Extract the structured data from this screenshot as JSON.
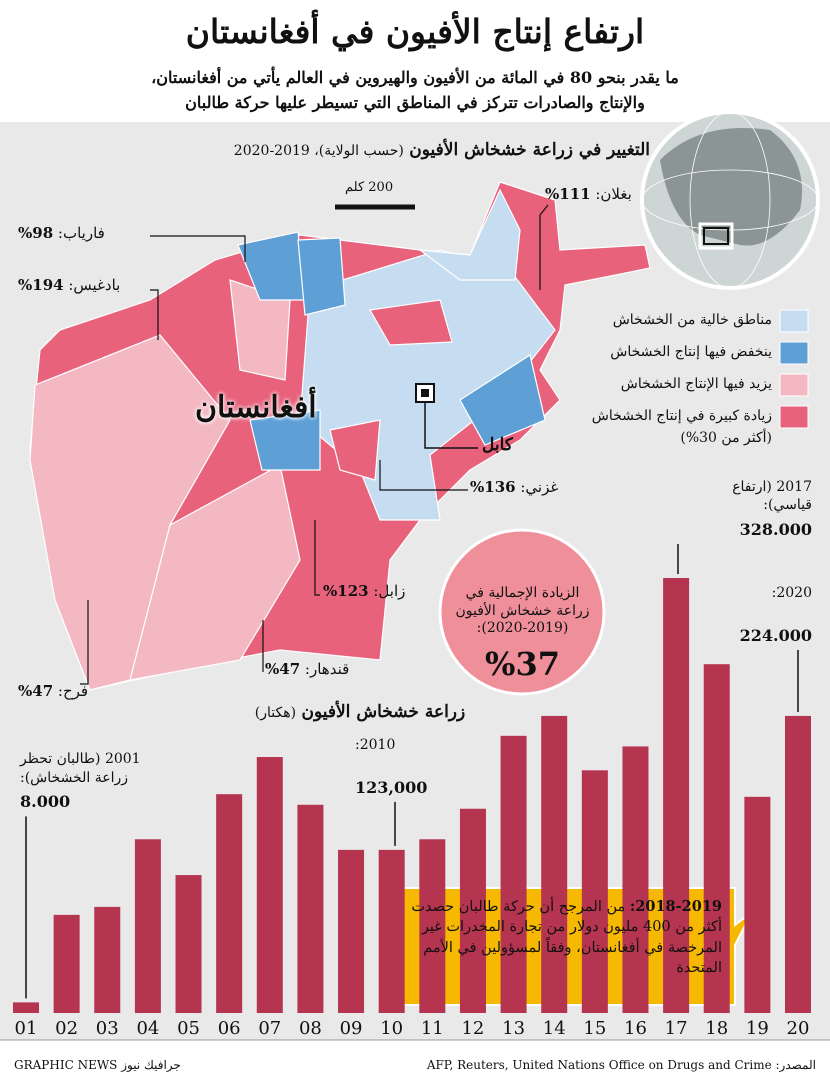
{
  "header": {
    "title": "ارتفاع إنتاج الأفيون في أفغانستان",
    "subtitle": [
      "ما يقدر بنحو 80 في المائة من الأفيون والهيروين في العالم يأتي من أفغانستان،",
      "والإنتاج والصادرات تتركز في المناطق التي تسيطر عليها حركة طالبان"
    ]
  },
  "map": {
    "title": "التغيير في زراعة خشخاش الأفيون",
    "subtitle": "(حسب الولاية)، 2019-2020",
    "scale": "200 كلم",
    "country": "أفغانستان",
    "capital": "كابل",
    "provinces": [
      {
        "name": "بغلان:",
        "value": "%111"
      },
      {
        "name": "فارياب:",
        "value": "%98"
      },
      {
        "name": "بادغيس:",
        "value": "%194"
      },
      {
        "name": "غزني:",
        "value": "%136"
      },
      {
        "name": "زابل:",
        "value": "%123"
      },
      {
        "name": "قندهار:",
        "value": "%47"
      },
      {
        "name": "فرح:",
        "value": "%47"
      }
    ],
    "legend": [
      {
        "label": "مناطق خالية من الخشخاش",
        "color": "#c6dcf0"
      },
      {
        "label": "ينخفض فيها إنتاج الخشخاش",
        "color": "#5e9fd6"
      },
      {
        "label": "يزيد فيها الإنتاج الخشخاش",
        "color": "#f4b8c3"
      },
      {
        "label": "زيادة كبيرة في إنتاج الخشخاش",
        "note": "(أكثر من 30%)",
        "color": "#e8627c"
      }
    ]
  },
  "summary": {
    "text": "الزيادة الإجمالية في زراعة خشخاش الأفيون (2019-2020):",
    "value": "%37"
  },
  "chart_data": {
    "type": "bar",
    "title": "زراعة خشخاش الأفيون",
    "subtitle": "(هكتار)",
    "categories": [
      "01",
      "02",
      "03",
      "04",
      "05",
      "06",
      "07",
      "08",
      "09",
      "10",
      "11",
      "12",
      "13",
      "14",
      "15",
      "16",
      "17",
      "18",
      "19",
      "20"
    ],
    "values": [
      8000,
      74000,
      80000,
      131000,
      104000,
      165000,
      193000,
      157000,
      123000,
      123000,
      131000,
      154000,
      209000,
      224000,
      183000,
      201000,
      328000,
      263000,
      163000,
      224000
    ],
    "value_labels": [
      "8.000",
      null,
      null,
      null,
      null,
      null,
      null,
      null,
      null,
      "123,000",
      null,
      null,
      null,
      null,
      null,
      null,
      "328.000",
      null,
      null,
      "224.000"
    ],
    "notes": [
      "2001 (طالبان تحظر زراعة الخشخاش):",
      null,
      null,
      null,
      null,
      null,
      null,
      null,
      null,
      "2010:",
      null,
      null,
      null,
      null,
      null,
      null,
      "2017 (ارتفاع قياسي):",
      null,
      null,
      "2020:"
    ],
    "color": "#b5344f"
  },
  "callout": {
    "heading": "2018-2019:",
    "text": "من المرجح أن حركة طالبان حصدت أكثر من 400 مليون دولار من تجارة المخدرات غير المرخصة في أفغانستان، وفقاً لمسؤولين في الأمم المتحدة"
  },
  "footer": {
    "credit": "جرافيك نيوز GRAPHIC NEWS",
    "source": "المصدر: AFP, Reuters, United Nations Office on Drugs and Crime"
  }
}
